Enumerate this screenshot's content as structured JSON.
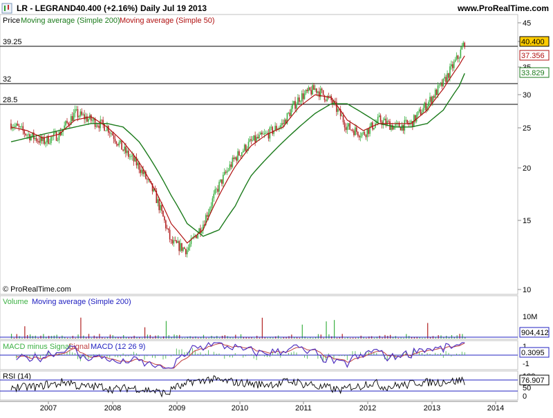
{
  "header": {
    "symbol": "LR - LEGRAND",
    "price": "40.400 (+2.16%)",
    "period": "Daily  Jul 19 2013",
    "site": "www.ProRealTime.com",
    "watermark": "© ProRealTime.com"
  },
  "price_panel": {
    "legend_price": "Price",
    "legend_ma200": "Moving average (Simple 200)",
    "legend_ma50": "Moving average (Simple 50)",
    "hlines": [
      {
        "value": 39.25,
        "label": "39.25"
      },
      {
        "value": 32,
        "label": "32"
      },
      {
        "value": 28.5,
        "label": "28.5"
      }
    ],
    "yticks": [
      "45",
      "40",
      "35",
      "30",
      "25",
      "20",
      "15",
      "10"
    ],
    "badges": [
      {
        "text": "40.400",
        "value": 40.4,
        "kind": "last"
      },
      {
        "text": "37.356",
        "value": 37.356,
        "kind": "ma50"
      },
      {
        "text": "33.829",
        "value": 33.829,
        "kind": "ma200"
      }
    ]
  },
  "volume_panel": {
    "legend_volume": "Volume",
    "legend_ma": "Moving average (Simple 200)",
    "ytick": "10M",
    "badge": "904,412"
  },
  "macd_panel": {
    "legend_hist": "MACD minus Signal",
    "legend_signal": "Signal",
    "legend_macd": "MACD (12 26 9)",
    "yticks": [
      "1",
      "-1"
    ],
    "badge": "0.3095"
  },
  "rsi_panel": {
    "legend": "RSI (14)",
    "yticks": [
      "100",
      "50",
      "0"
    ],
    "badge": "76.907"
  },
  "x_axis": {
    "labels": [
      "2007",
      "2008",
      "2009",
      "2010",
      "2011",
      "2012",
      "2013",
      "2014"
    ]
  },
  "colors": {
    "up": "#3cb043",
    "down": "#b22222",
    "ma200": "#1a7a1a",
    "ma50": "#b01010",
    "macd": "#2020c0",
    "signal": "#c04040",
    "highlight": "#ffcc00"
  },
  "chart_data": {
    "type": "line",
    "scale": "log",
    "x": [
      "2006-06",
      "2006-09",
      "2006-12",
      "2007-03",
      "2007-06",
      "2007-09",
      "2007-12",
      "2008-03",
      "2008-06",
      "2008-09",
      "2008-12",
      "2009-03",
      "2009-06",
      "2009-09",
      "2009-12",
      "2010-03",
      "2010-06",
      "2010-09",
      "2010-12",
      "2011-03",
      "2011-06",
      "2011-09",
      "2011-12",
      "2012-03",
      "2012-06",
      "2012-09",
      "2012-12",
      "2013-03",
      "2013-06",
      "2013-07"
    ],
    "series": [
      {
        "name": "Price",
        "values": [
          25.5,
          24,
          23,
          24,
          27,
          26,
          25,
          22,
          20,
          17,
          13,
          12.5,
          14.5,
          18,
          21,
          23,
          24,
          25.5,
          29.5,
          31,
          29,
          25,
          24,
          26,
          25,
          25.5,
          28.5,
          32,
          37.5,
          40.4
        ]
      },
      {
        "name": "Moving average (Simple 50)",
        "values": [
          25,
          24.5,
          23.5,
          24,
          26,
          26.5,
          25,
          23,
          20.5,
          17.5,
          14.5,
          13,
          14,
          17,
          20,
          22.5,
          24,
          25,
          28,
          30,
          29.5,
          26,
          24.5,
          25.5,
          25.5,
          25.5,
          27.5,
          31,
          35.5,
          37.356
        ]
      },
      {
        "name": "Moving average (Simple 200)",
        "values": [
          23,
          23.5,
          24,
          24.5,
          25,
          25.5,
          25.5,
          25,
          23,
          20,
          17,
          14.5,
          13.5,
          14,
          16,
          19,
          21,
          23,
          25,
          27,
          28.5,
          28.5,
          27,
          25.5,
          25,
          25,
          25.5,
          27.5,
          31.5,
          33.829
        ]
      }
    ],
    "ylim": [
      10,
      45
    ],
    "ylabel": "",
    "xlabel": ""
  }
}
